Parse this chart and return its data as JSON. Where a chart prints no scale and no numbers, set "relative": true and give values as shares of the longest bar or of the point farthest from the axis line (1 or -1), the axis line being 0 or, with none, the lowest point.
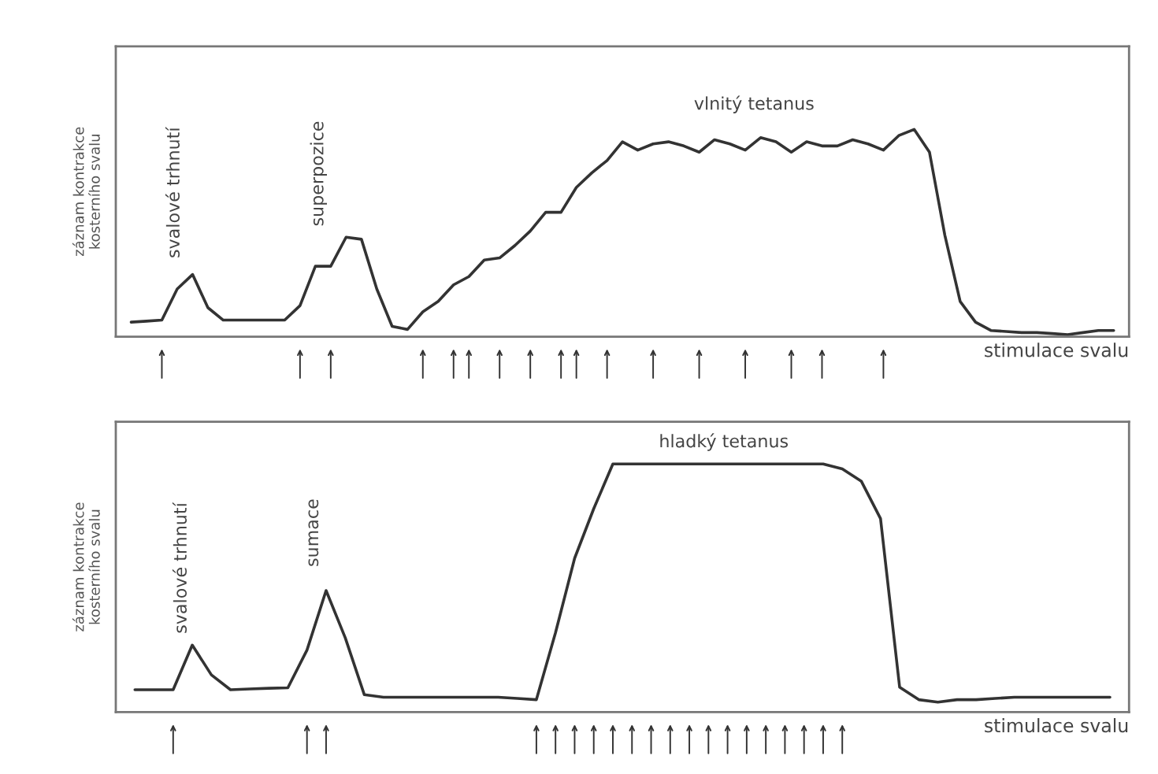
{
  "chart_data": [
    {
      "type": "line",
      "relative": true,
      "ylabel": "záznam kontrakce\nkosterního svalu",
      "xlabel": "stimulace svalu",
      "line_style": "solid",
      "categories": [
        null,
        null,
        null,
        null,
        null,
        null,
        null,
        null,
        null,
        null,
        null,
        null,
        null,
        null,
        null,
        null,
        null,
        null,
        null,
        null,
        null,
        null,
        null,
        null,
        null,
        null,
        null,
        null,
        null,
        null,
        null,
        null,
        null,
        null,
        null,
        null,
        null,
        null,
        null,
        null,
        null,
        null,
        null,
        null,
        null,
        null,
        null,
        null,
        null,
        null,
        null,
        null,
        null,
        null,
        null,
        null,
        null,
        null,
        null,
        null,
        null,
        null,
        null,
        null,
        null
      ],
      "annotations": [
        "svalové trhnutí",
        "superpozice",
        "vlnitý tetanus"
      ],
      "series": [
        {
          "color": "#333333",
          "values": [
            0.07,
            0.075,
            0.08,
            0.23,
            0.3,
            0.14,
            0.08,
            0.08,
            0.08,
            0.08,
            0.08,
            0.15,
            0.34,
            0.34,
            0.48,
            0.47,
            0.23,
            0.05,
            0.035,
            0.12,
            0.17,
            0.25,
            0.29,
            0.37,
            0.38,
            0.44,
            0.51,
            0.6,
            0.6,
            0.72,
            0.79,
            0.85,
            0.94,
            0.9,
            0.93,
            0.94,
            0.92,
            0.89,
            0.95,
            0.93,
            0.9,
            0.96,
            0.94,
            0.89,
            0.94,
            0.92,
            0.92,
            0.95,
            0.93,
            0.9,
            0.97,
            1,
            0.89,
            0.49,
            0.17,
            0.07,
            0.03,
            0.025,
            0.02,
            0.02,
            0.015,
            0.01,
            0.02,
            0.03,
            0.03
          ]
        }
      ]
    },
    {
      "type": "line",
      "relative": true,
      "ylabel": "záznam kontrakce\nkosterního svalu",
      "xlabel": "stimulace svalu",
      "line_style": "solid",
      "categories": [
        null,
        null,
        null,
        null,
        null,
        null,
        null,
        null,
        null,
        null,
        null,
        null,
        null,
        null,
        null,
        null,
        null,
        null,
        null,
        null,
        null,
        null,
        null,
        null,
        null,
        null,
        null,
        null,
        null,
        null,
        null,
        null,
        null,
        null,
        null,
        null,
        null,
        null,
        null,
        null,
        null,
        null,
        null,
        null,
        null,
        null,
        null,
        null,
        null,
        null,
        null,
        null
      ],
      "annotations": [
        "svalové trhnutí",
        "sumace",
        "hladký tetanus"
      ],
      "series": [
        {
          "color": "#333333",
          "values": [
            0.09,
            0.09,
            0.09,
            0.27,
            0.15,
            0.09,
            0.093,
            0.096,
            0.098,
            0.25,
            0.49,
            0.3,
            0.07,
            0.06,
            0.06,
            0.06,
            0.06,
            0.06,
            0.06,
            0.06,
            0.055,
            0.05,
            0.32,
            0.62,
            0.82,
            1,
            1,
            1,
            1,
            1,
            1,
            1,
            1,
            1,
            1,
            1,
            1,
            0.98,
            0.93,
            0.78,
            0.1,
            0.05,
            0.04,
            0.05,
            0.05,
            0.055,
            0.06,
            0.06,
            0.06,
            0.06,
            0.06,
            0.06
          ]
        }
      ]
    }
  ]
}
